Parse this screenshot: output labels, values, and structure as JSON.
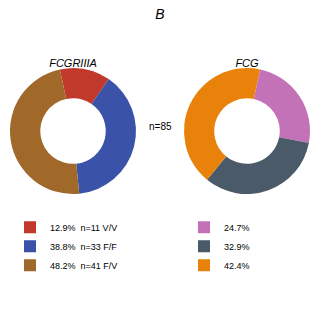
{
  "title": "B",
  "annotations": [
    "n=85"
  ],
  "chart_data": [
    {
      "type": "pie",
      "title": "FCGRIIIA",
      "categories": [
        "12.9%  n=11 V/V",
        "38.8%  n=33 F/F",
        "48.2%  n=41 F/V"
      ],
      "values": [
        12.9,
        38.8,
        48.2
      ],
      "colors": [
        "#c0392b",
        "#3a52a8",
        "#a0692a"
      ],
      "legend": "bottom"
    },
    {
      "type": "pie",
      "title": "FCG",
      "categories": [
        "24.7%",
        "32.9%",
        "42.4%"
      ],
      "values": [
        24.7,
        32.9,
        42.4
      ],
      "colors": [
        "#c472b8",
        "#4a5a68",
        "#e8820a"
      ],
      "legend": "bottom"
    }
  ]
}
